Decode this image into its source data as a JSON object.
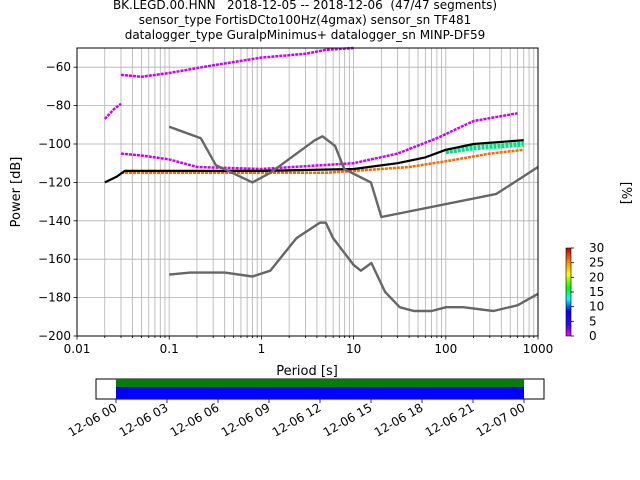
{
  "title": {
    "line1": "BK.LEGD.00.HNN   2018-12-05 -- 2018-12-06  (47/47 segments)",
    "line2": "sensor_type FortisDCto100Hz(4gmax) sensor_sn TF481",
    "line3": "datalogger_type GuralpMinimus+ datalogger_sn MINP-DF59"
  },
  "colorbar": {
    "label": "[%]",
    "ticks": [
      "0",
      "5",
      "10",
      "15",
      "20",
      "25",
      "30"
    ],
    "range": [
      0,
      30
    ]
  },
  "timebar": {
    "ticks": [
      "12-06 00",
      "12-06 03",
      "12-06 06",
      "12-06 09",
      "12-06 12",
      "12-06 15",
      "12-06 18",
      "12-06 21",
      "12-07 00"
    ],
    "colors": [
      "#008000",
      "#0000ff"
    ]
  },
  "chart_data": {
    "type": "heatmap",
    "xlabel": "Period [s]",
    "ylabel": "Power [dB]",
    "xscale": "log",
    "xlim": [
      0.01,
      1000
    ],
    "ylim": [
      -200,
      -50
    ],
    "xticks": [
      0.01,
      0.1,
      1,
      10,
      100,
      1000
    ],
    "xtick_labels": [
      "0.01",
      "0.1",
      "1",
      "10",
      "100",
      "1000"
    ],
    "yticks": [
      -200,
      -180,
      -160,
      -140,
      -120,
      -100,
      -80,
      -60
    ],
    "ytick_labels": [
      "−200",
      "−180",
      "−160",
      "−140",
      "−120",
      "−100",
      "−80",
      "−60"
    ],
    "grid": true,
    "series": [
      {
        "style": "noise-model",
        "color": "#666666",
        "points": [
          [
            0.1,
            -91
          ],
          [
            0.22,
            -97
          ],
          [
            0.32,
            -111
          ],
          [
            0.8,
            -120
          ],
          [
            1.25,
            -115
          ],
          [
            3.8,
            -98
          ],
          [
            4.6,
            -96
          ],
          [
            6.3,
            -101
          ],
          [
            7.9,
            -113
          ],
          [
            15.4,
            -120
          ],
          [
            20,
            -138
          ],
          [
            354,
            -126
          ],
          [
            1000,
            -112
          ]
        ]
      },
      {
        "style": "noise-model",
        "color": "#666666",
        "points": [
          [
            0.1,
            -168
          ],
          [
            0.17,
            -167
          ],
          [
            0.4,
            -167
          ],
          [
            0.8,
            -169
          ],
          [
            1.25,
            -166
          ],
          [
            2.4,
            -149
          ],
          [
            4.3,
            -141
          ],
          [
            5,
            -141
          ],
          [
            6,
            -149
          ],
          [
            10,
            -163
          ],
          [
            12,
            -166
          ],
          [
            15.6,
            -162
          ],
          [
            21.9,
            -177
          ],
          [
            31.6,
            -185
          ],
          [
            45,
            -187
          ],
          [
            70,
            -187
          ],
          [
            101,
            -185
          ],
          [
            154,
            -185
          ],
          [
            328,
            -187
          ],
          [
            600,
            -184
          ],
          [
            1000,
            -178
          ]
        ]
      },
      {
        "style": "mode",
        "color": "#000000",
        "points": [
          [
            0.02,
            -120
          ],
          [
            0.027,
            -117
          ],
          [
            0.033,
            -114
          ],
          [
            0.1,
            -114
          ],
          [
            1,
            -114
          ],
          [
            10,
            -113
          ],
          [
            30,
            -110
          ],
          [
            60,
            -107
          ],
          [
            100,
            -103
          ],
          [
            200,
            -100
          ],
          [
            700,
            -98
          ]
        ]
      },
      {
        "style": "density-band-magenta",
        "color": "#cc00ff",
        "points": [
          [
            0.03,
            -64
          ],
          [
            0.05,
            -65
          ],
          [
            0.1,
            -63
          ],
          [
            0.3,
            -59
          ],
          [
            1,
            -55
          ],
          [
            3,
            -53
          ],
          [
            5,
            -51
          ],
          [
            10,
            -50
          ]
        ]
      },
      {
        "style": "density-band-magenta",
        "color": "#cc00ff",
        "points": [
          [
            0.02,
            -87
          ],
          [
            0.025,
            -82
          ],
          [
            0.03,
            -79
          ]
        ]
      },
      {
        "style": "density-band-magenta",
        "color": "#cc00ff",
        "points": [
          [
            0.03,
            -105
          ],
          [
            0.05,
            -106
          ],
          [
            0.1,
            -108
          ],
          [
            0.2,
            -112
          ],
          [
            1,
            -113
          ],
          [
            10,
            -110
          ],
          [
            30,
            -105
          ],
          [
            80,
            -97
          ],
          [
            200,
            -88
          ],
          [
            600,
            -84
          ]
        ]
      },
      {
        "style": "density-band-orange",
        "color": "#ff6600",
        "points": [
          [
            0.03,
            -115
          ],
          [
            0.1,
            -115
          ],
          [
            1,
            -115
          ],
          [
            5,
            -115
          ],
          [
            10,
            -114
          ],
          [
            40,
            -112
          ],
          [
            100,
            -109
          ],
          [
            300,
            -105
          ],
          [
            700,
            -103
          ]
        ]
      },
      {
        "style": "density-band-green",
        "color": "#00e080",
        "points": [
          [
            100,
            -104
          ],
          [
            200,
            -102
          ],
          [
            400,
            -101
          ],
          [
            700,
            -100
          ]
        ]
      }
    ]
  }
}
